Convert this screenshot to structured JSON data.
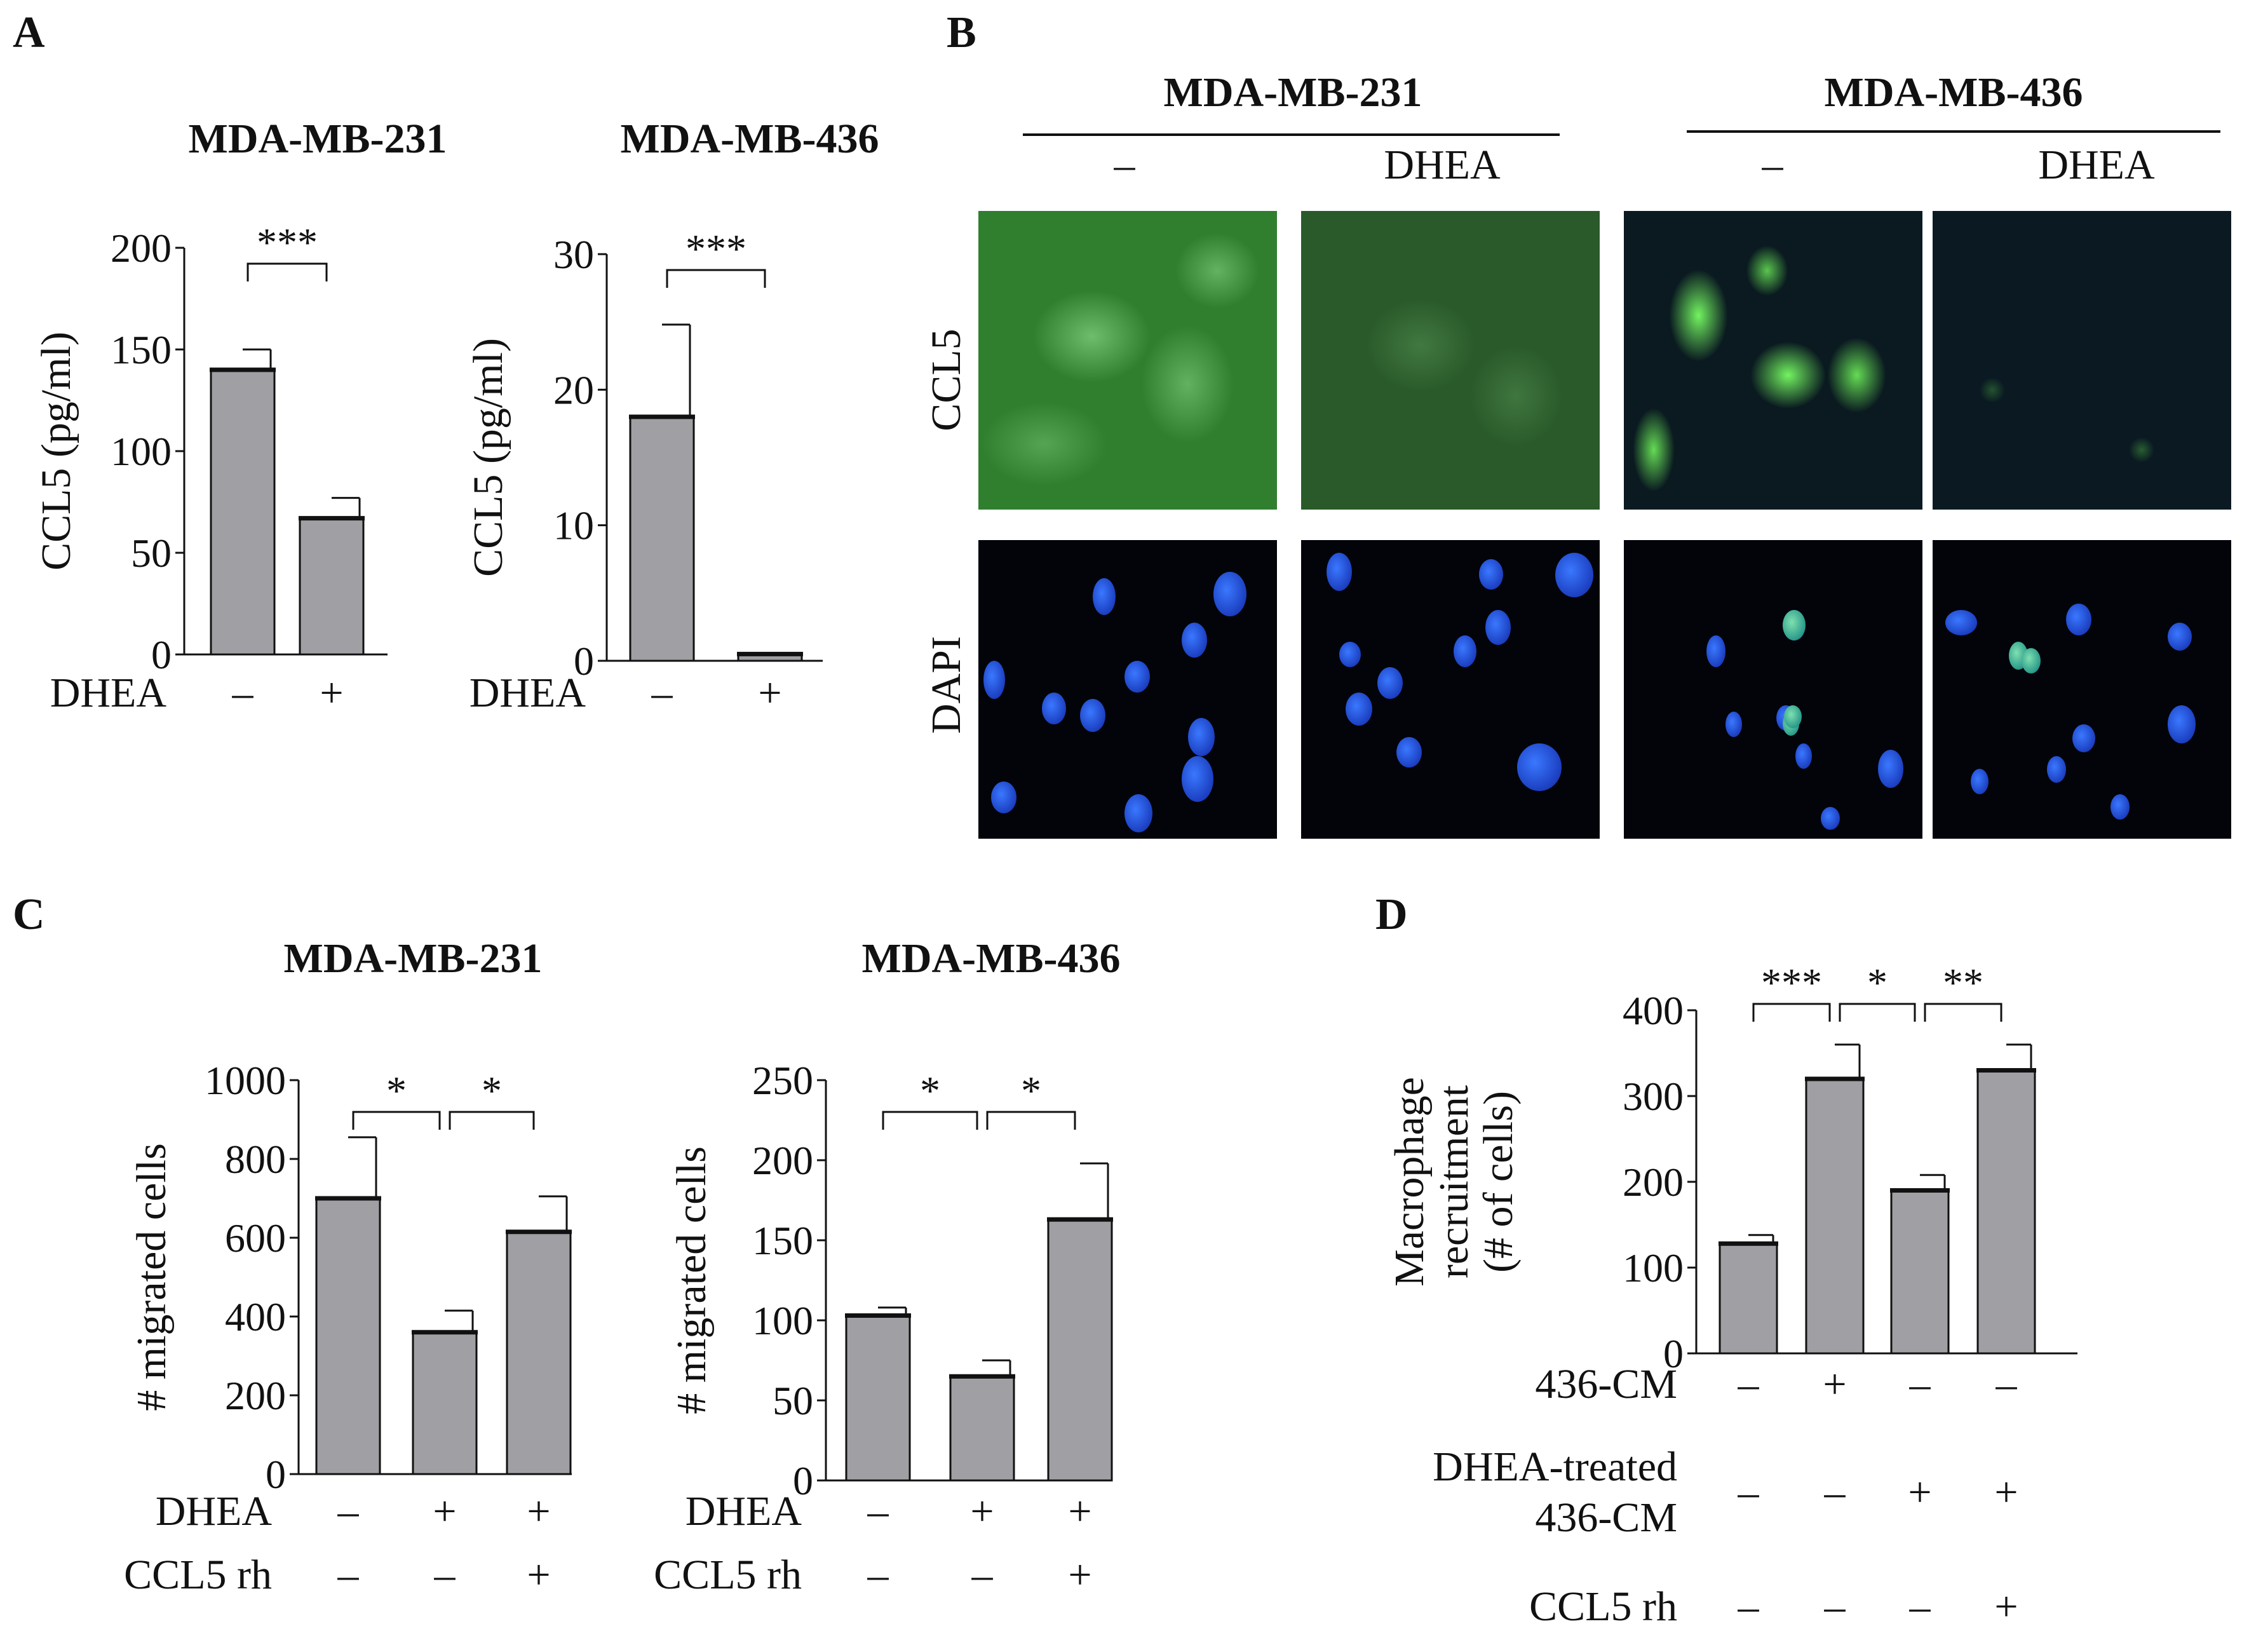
{
  "panels": {
    "A": {
      "letter": "A"
    },
    "B": {
      "letter": "B"
    },
    "C": {
      "letter": "C"
    },
    "D": {
      "letter": "D"
    }
  },
  "panel_b": {
    "group_231": "MDA-MB-231",
    "group_436": "MDA-MB-436",
    "col_minus_1": "–",
    "col_dhea_1": "DHEA",
    "col_minus_2": "–",
    "col_dhea_2": "DHEA",
    "row_ccl5": "CCL5",
    "row_dapi": "DAPI"
  },
  "chart_data": [
    {
      "id": "A1",
      "type": "bar",
      "title": "MDA-MB-231",
      "ylabel": "CCL5 (pg/ml)",
      "ylim": [
        0,
        200
      ],
      "yticks": [
        "0",
        "50",
        "100",
        "150",
        "200"
      ],
      "categories": [
        "–",
        "+"
      ],
      "row_labels": [
        "DHEA"
      ],
      "rows": [
        [
          "–",
          "+"
        ]
      ],
      "values": [
        140,
        67
      ],
      "errors": [
        10,
        10
      ],
      "significance": [
        {
          "from": 0,
          "to": 1,
          "label": "***"
        }
      ]
    },
    {
      "id": "A2",
      "type": "bar",
      "title": "MDA-MB-436",
      "ylabel": "CCL5 (pg/ml)",
      "ylim": [
        0,
        30
      ],
      "yticks": [
        "0",
        "10",
        "20",
        "30"
      ],
      "categories": [
        "–",
        "+"
      ],
      "row_labels": [
        "DHEA"
      ],
      "rows": [
        [
          "–",
          "+"
        ]
      ],
      "values": [
        18,
        0.5
      ],
      "errors": [
        6.8,
        0
      ],
      "significance": [
        {
          "from": 0,
          "to": 1,
          "label": "***"
        }
      ]
    },
    {
      "id": "C1",
      "type": "bar",
      "title": "MDA-MB-231",
      "ylabel": "# migrated cells",
      "ylim": [
        0,
        1000
      ],
      "yticks": [
        "0",
        "200",
        "400",
        "600",
        "800",
        "1000"
      ],
      "categories": [
        "1",
        "2",
        "3"
      ],
      "row_labels": [
        "DHEA",
        "CCL5 rh"
      ],
      "rows": [
        [
          "–",
          "+",
          "+"
        ],
        [
          "–",
          "–",
          "+"
        ]
      ],
      "values": [
        700,
        360,
        615
      ],
      "errors": [
        155,
        55,
        90
      ],
      "significance": [
        {
          "from": 0,
          "to": 1,
          "label": "*"
        },
        {
          "from": 1,
          "to": 2,
          "label": "*"
        }
      ]
    },
    {
      "id": "C2",
      "type": "bar",
      "title": "MDA-MB-436",
      "ylabel": "# migrated cells",
      "ylim": [
        0,
        250
      ],
      "yticks": [
        "0",
        "50",
        "100",
        "150",
        "200",
        "250"
      ],
      "categories": [
        "1",
        "2",
        "3"
      ],
      "row_labels": [
        "DHEA",
        "CCL5 rh"
      ],
      "rows": [
        [
          "–",
          "+",
          "+"
        ],
        [
          "–",
          "–",
          "+"
        ]
      ],
      "values": [
        103,
        65,
        163
      ],
      "errors": [
        5,
        10,
        35
      ],
      "significance": [
        {
          "from": 0,
          "to": 1,
          "label": "*"
        },
        {
          "from": 1,
          "to": 2,
          "label": "*"
        }
      ]
    },
    {
      "id": "D",
      "type": "bar",
      "title": "",
      "ylabel": "Macrophage recruitment (# of cells)",
      "ylabel_lines": [
        "Macrophage",
        "recruitment",
        "(# of cells)"
      ],
      "ylim": [
        0,
        400
      ],
      "yticks": [
        "0",
        "100",
        "200",
        "300",
        "400"
      ],
      "categories": [
        "1",
        "2",
        "3",
        "4"
      ],
      "row_labels": [
        "436-CM",
        "DHEA-treated",
        "436-CM",
        "CCL5 rh"
      ],
      "rows": [
        [
          "–",
          "+",
          "–",
          "–"
        ],
        [
          "–",
          "–",
          "+",
          "+"
        ],
        [
          "–",
          "–",
          "–",
          "+"
        ]
      ],
      "values": [
        128,
        320,
        190,
        330
      ],
      "errors": [
        10,
        40,
        18,
        30
      ],
      "significance": [
        {
          "from": 0,
          "to": 1,
          "label": "***"
        },
        {
          "from": 1,
          "to": 2,
          "label": "*"
        },
        {
          "from": 2,
          "to": 3,
          "label": "**"
        }
      ]
    }
  ]
}
